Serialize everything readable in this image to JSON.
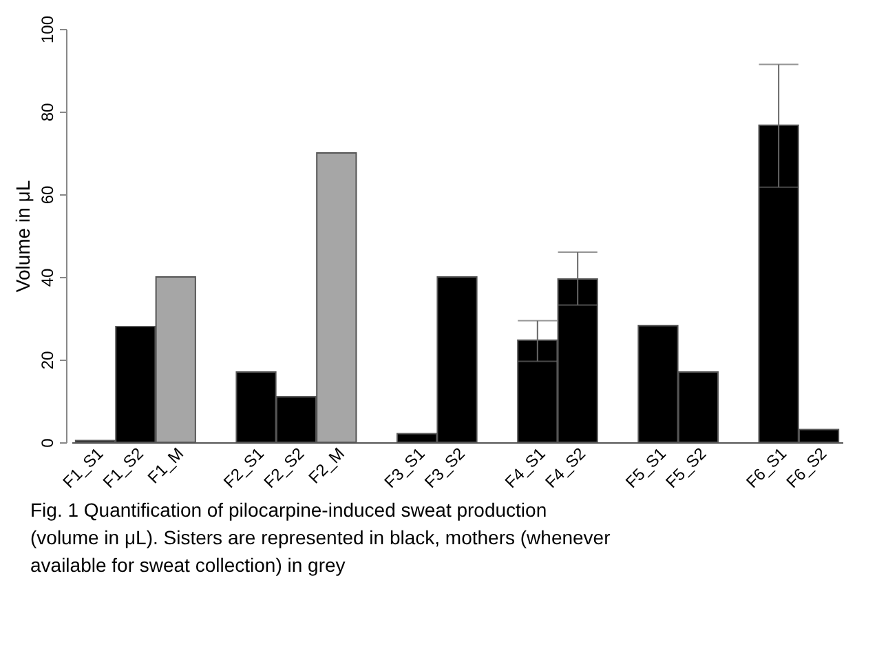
{
  "chart_data": {
    "type": "bar",
    "ylabel": "Volume in μL",
    "categories": [
      "F1_S1",
      "F1_S2",
      "F1_M",
      null,
      "F2_S1",
      "F2_S2",
      "F2_M",
      null,
      "F3_S1",
      "F3_S2",
      null,
      "F4_S1",
      "F4_S2",
      null,
      "F5_S1",
      "F5_S2",
      null,
      "F6_S1",
      "F6_S2"
    ],
    "values": [
      0.4,
      28,
      40,
      null,
      17,
      11,
      70,
      null,
      2.1,
      40,
      null,
      24.7,
      39.5,
      null,
      28.2,
      17,
      null,
      76.7,
      3.1
    ],
    "colors": [
      "#000000",
      "#000000",
      "#a6a6a6",
      null,
      "#000000",
      "#000000",
      "#a6a6a6",
      null,
      "#000000",
      "#000000",
      null,
      "#000000",
      "#000000",
      null,
      "#000000",
      "#000000",
      null,
      "#000000",
      "#000000"
    ],
    "errors": [
      null,
      null,
      null,
      null,
      null,
      null,
      null,
      null,
      null,
      null,
      null,
      [
        19.6,
        29.4
      ],
      [
        33.2,
        46
      ],
      null,
      null,
      null,
      null,
      [
        61.7,
        91.4
      ],
      null
    ],
    "ylim": [
      0,
      100
    ],
    "yticks": [
      0,
      20,
      40,
      60,
      80,
      100
    ],
    "grid": false,
    "annotations": [
      "Fig. 1  Quantification of pilocarpine-induced sweat production (volume in μL). Sisters are represented in black, mothers (whenever available for sweat collection) in grey"
    ]
  }
}
